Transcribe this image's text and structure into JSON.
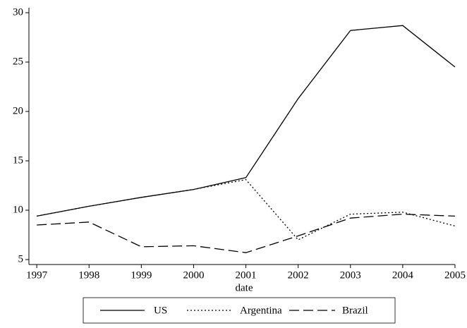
{
  "chart_data": {
    "type": "line",
    "x_label": "date",
    "x": [
      1997,
      1998,
      1999,
      2000,
      2001,
      2002,
      2003,
      2004,
      2005
    ],
    "series": [
      {
        "name": "US",
        "color": "#000000",
        "dash": "solid",
        "values": [
          9.4,
          10.4,
          11.3,
          12.1,
          13.3,
          21.3,
          28.2,
          28.7,
          24.5
        ]
      },
      {
        "name": "Argentina",
        "color": "#000000",
        "dash": "dotted",
        "values": [
          9.4,
          10.4,
          11.3,
          12.1,
          13.1,
          7.0,
          9.6,
          9.8,
          8.4
        ]
      },
      {
        "name": "Brazil",
        "color": "#000000",
        "dash": "dashed",
        "values": [
          8.5,
          8.8,
          6.3,
          6.4,
          5.7,
          7.4,
          9.2,
          9.6,
          9.4
        ]
      }
    ],
    "xlim": [
      1996.85,
      2005
    ],
    "xticks": [
      1997,
      1998,
      1999,
      2000,
      2001,
      2002,
      2003,
      2004,
      2005
    ],
    "ylim": [
      4.5,
      30.5
    ],
    "yticks": [
      5,
      10,
      15,
      20,
      25,
      30
    ],
    "grid": false,
    "legend": "bottom"
  }
}
